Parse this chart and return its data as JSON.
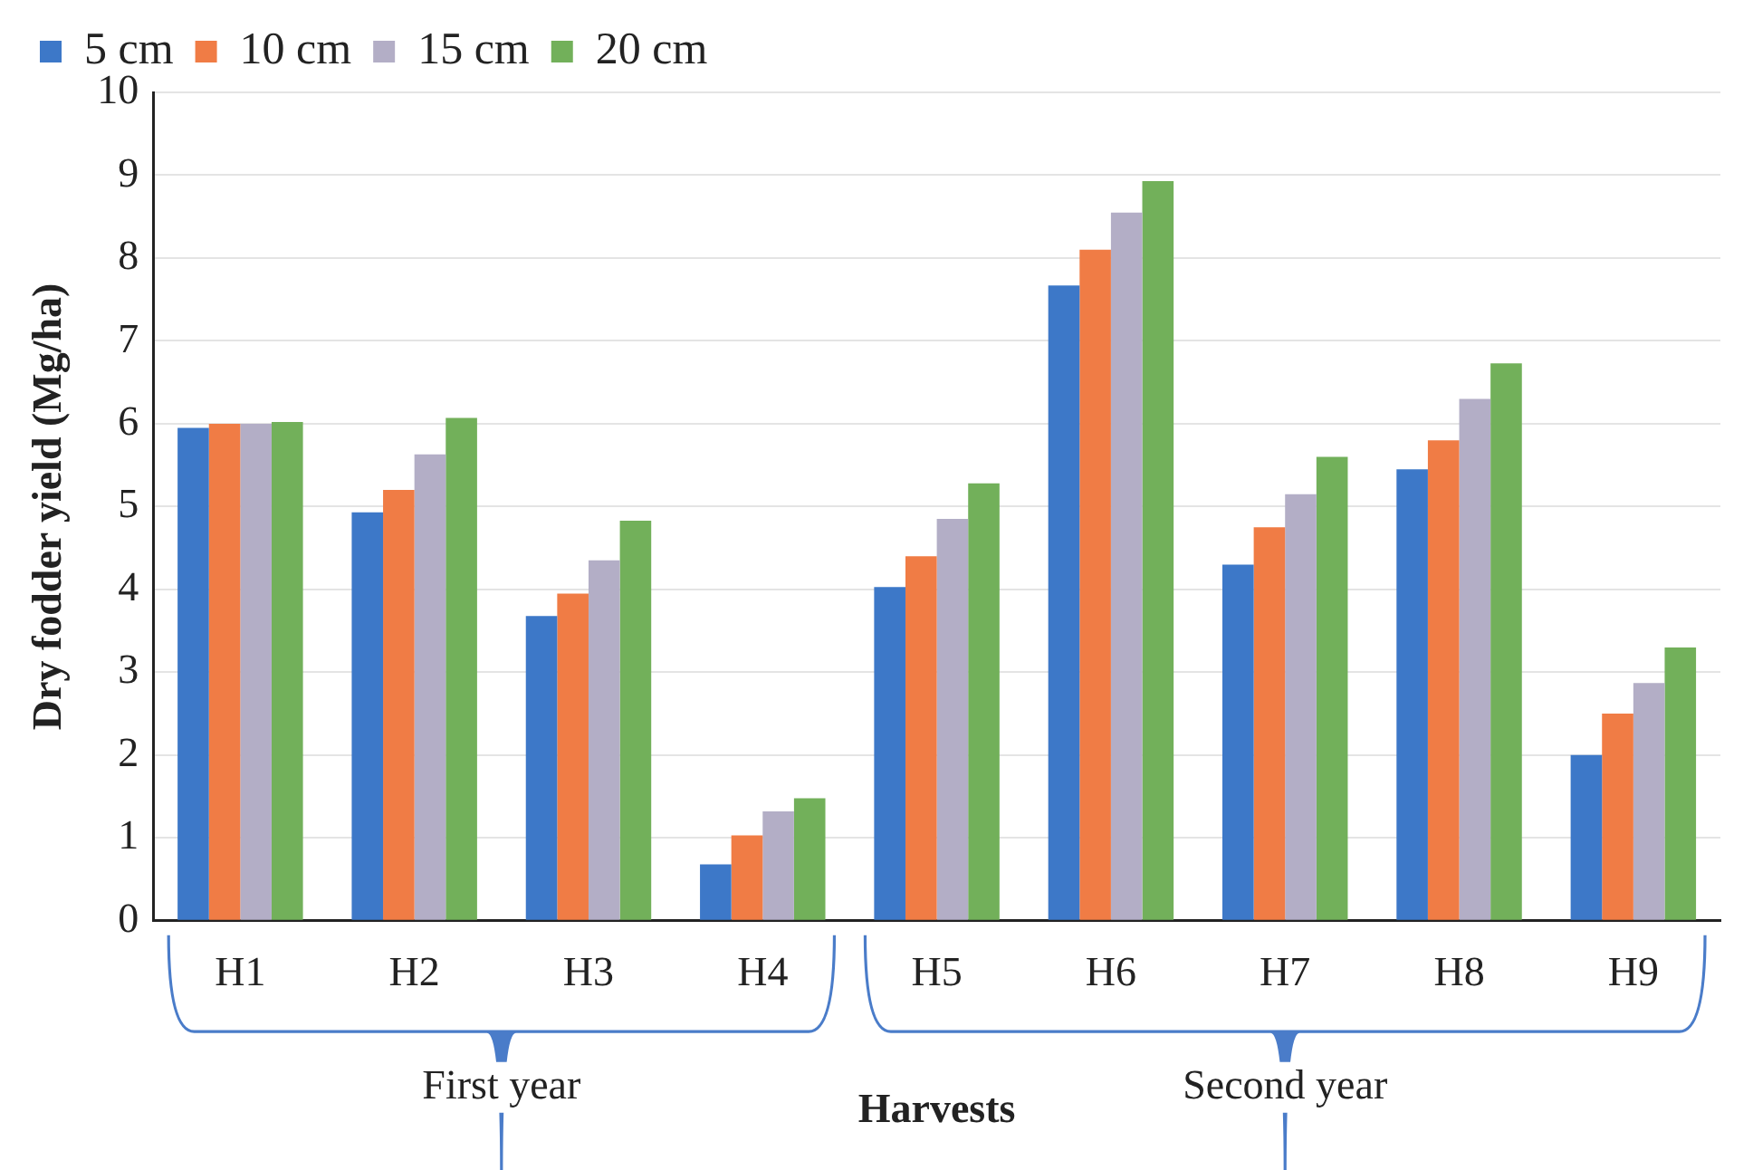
{
  "chart_data": {
    "type": "bar",
    "xlabel": "Harvests",
    "ylabel": "Dry fodder yield (Mg/ha)",
    "categories": [
      "H1",
      "H2",
      "H3",
      "H4",
      "H5",
      "H6",
      "H7",
      "H8",
      "H9"
    ],
    "series": [
      {
        "name": "5 cm",
        "color": "#3d78c8",
        "values": [
          5.95,
          4.93,
          3.68,
          0.68,
          4.03,
          7.67,
          4.3,
          5.45,
          2.0
        ]
      },
      {
        "name": "10 cm",
        "color": "#f07c45",
        "values": [
          6.0,
          5.2,
          3.95,
          1.03,
          4.4,
          8.1,
          4.75,
          5.8,
          2.5
        ]
      },
      {
        "name": "15 cm",
        "color": "#b3aec6",
        "values": [
          6.0,
          5.63,
          4.35,
          1.32,
          4.85,
          8.55,
          5.15,
          6.3,
          2.87
        ]
      },
      {
        "name": "20 cm",
        "color": "#72b05a",
        "values": [
          6.02,
          6.07,
          4.83,
          1.48,
          5.28,
          8.93,
          5.6,
          6.73,
          3.3
        ]
      }
    ],
    "ylim": [
      0,
      10
    ],
    "yticks": [
      0,
      1,
      2,
      3,
      4,
      5,
      6,
      7,
      8,
      9,
      10
    ],
    "grid": "y",
    "legend": "top",
    "annotations": [
      {
        "text": "First year"
      },
      {
        "text": "Second year"
      }
    ]
  }
}
